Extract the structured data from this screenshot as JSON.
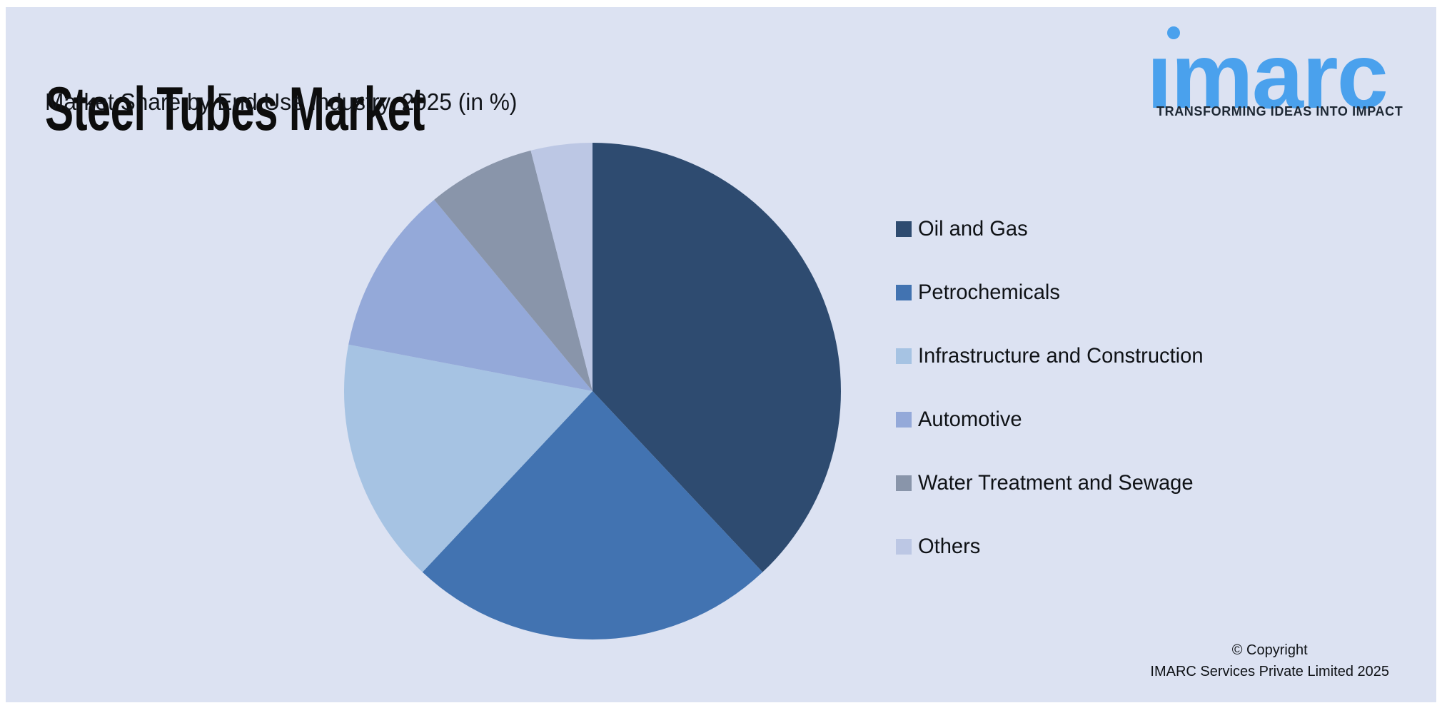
{
  "header": {
    "title": "Steel Tubes Market",
    "subtitle": "Market Share by End Use Industry, 2025 (in %)"
  },
  "logo": {
    "brand": "imarc",
    "tagline": "TRANSFORMING IDEAS INTO IMPACT",
    "brand_color": "#4aa1ed"
  },
  "footer": {
    "line1": "© Copyright",
    "line2": "IMARC Services Private Limited 2025"
  },
  "colors": {
    "page_bg": "#ffffff",
    "panel_bg": "#dce2f2"
  },
  "chart_data": {
    "type": "pie",
    "title": "Steel Tubes Market",
    "subtitle": "Market Share by End Use Industry, 2025 (in %)",
    "unit": "%",
    "start_angle_deg": 0,
    "direction": "clockwise",
    "legend_position": "right",
    "slices": [
      {
        "label": "Oil and Gas",
        "value": 38,
        "color": "#2e4b70"
      },
      {
        "label": "Petrochemicals",
        "value": 24,
        "color": "#4273b1"
      },
      {
        "label": "Infrastructure and Construction",
        "value": 16,
        "color": "#a6c3e3"
      },
      {
        "label": "Automotive",
        "value": 11,
        "color": "#94a9d9"
      },
      {
        "label": "Water Treatment and Sewage",
        "value": 7,
        "color": "#8995aa"
      },
      {
        "label": "Others",
        "value": 4,
        "color": "#bcc7e4"
      }
    ]
  }
}
